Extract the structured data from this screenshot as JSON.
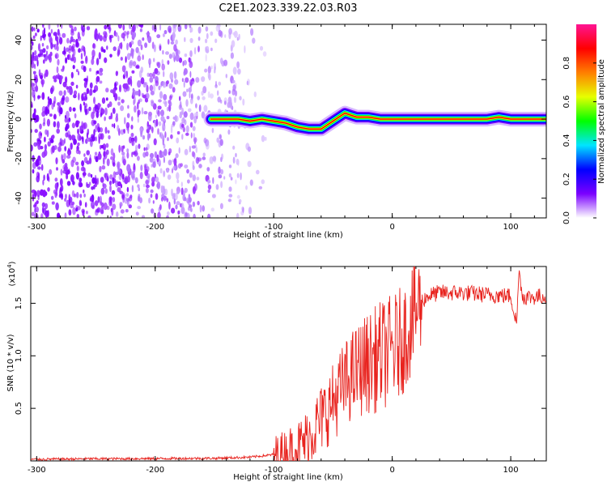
{
  "figure": {
    "title": "C2E1.2023.339.22.03.R03"
  },
  "chart_data": [
    {
      "type": "heatmap",
      "xlabel": "Height of straight line (km)",
      "ylabel": "Frequency (Hz)",
      "xlim": [
        -305,
        130
      ],
      "ylim": [
        -50,
        48
      ],
      "x_ticks": [
        -300,
        -200,
        -100,
        0,
        100
      ],
      "x_tick_labels": [
        "-300",
        "-200",
        "-100",
        "0",
        "100"
      ],
      "y_ticks": [
        -40,
        -20,
        0,
        20,
        40
      ],
      "y_tick_labels": [
        "-40",
        "-20",
        "0",
        "20",
        "40"
      ],
      "colorbar": {
        "label": "Normalized spectral amplitude",
        "range": [
          0,
          1
        ],
        "ticks": [
          0,
          0.2,
          0.4,
          0.6,
          0.8
        ],
        "tick_labels": [
          "0.0",
          "0.2",
          "0.4",
          "0.6",
          "0.8"
        ],
        "colors": [
          "#ffffff",
          "#7a00ff",
          "#0000ff",
          "#00e5ff",
          "#00ff00",
          "#e6ff00",
          "#ff7f00",
          "#ff0000",
          "#ff1493"
        ]
      },
      "noise_region_x": [
        -305,
        -100
      ],
      "ridge": {
        "x": [
          -153,
          -140,
          -130,
          -120,
          -110,
          -100,
          -90,
          -80,
          -70,
          -60,
          -55,
          -50,
          -45,
          -40,
          -35,
          -30,
          -20,
          -10,
          0,
          20,
          40,
          60,
          80,
          90,
          100,
          110,
          130
        ],
        "y": [
          0,
          0,
          0,
          -1,
          0,
          -1,
          -2,
          -4,
          -5,
          -5,
          -3,
          -1,
          1,
          3,
          2,
          1,
          1,
          0,
          0,
          0,
          0,
          0,
          0,
          1,
          0,
          0,
          0
        ]
      },
      "grid": false
    },
    {
      "type": "line",
      "xlabel": "Height of straight line (km)",
      "ylabel": "SNR (10 * v/v)",
      "y_scale_label": "(x10",
      "y_scale_exp": "4",
      "y_scale_close": ")",
      "xlim": [
        -305,
        130
      ],
      "ylim": [
        0,
        18500
      ],
      "x_ticks": [
        -300,
        -200,
        -100,
        0,
        100
      ],
      "x_tick_labels": [
        "-300",
        "-200",
        "-100",
        "0",
        "100"
      ],
      "y_ticks": [
        5000,
        10000,
        15000
      ],
      "y_tick_labels": [
        "0.5",
        "1.0",
        "1.5"
      ],
      "series": [
        {
          "color": "#e8231e",
          "x": [
            -305,
            -250,
            -200,
            -150,
            -120,
            -100,
            -90,
            -80,
            -75,
            -70,
            -65,
            -60,
            -55,
            -50,
            -45,
            -40,
            -35,
            -30,
            -25,
            -20,
            -15,
            -10,
            -5,
            0,
            5,
            10,
            15,
            20,
            25,
            30,
            40,
            50,
            60,
            80,
            100,
            105,
            107,
            110,
            120,
            130
          ],
          "y": [
            150,
            200,
            220,
            250,
            350,
            600,
            900,
            1300,
            1700,
            2400,
            3200,
            4000,
            4800,
            5600,
            6500,
            7300,
            8000,
            8500,
            9000,
            9300,
            9600,
            10000,
            10300,
            10600,
            11000,
            11800,
            13000,
            14300,
            15200,
            15700,
            16000,
            16000,
            16000,
            15800,
            15700,
            13000,
            18300,
            15600,
            15600,
            15700
          ]
        }
      ],
      "grid": false
    }
  ]
}
